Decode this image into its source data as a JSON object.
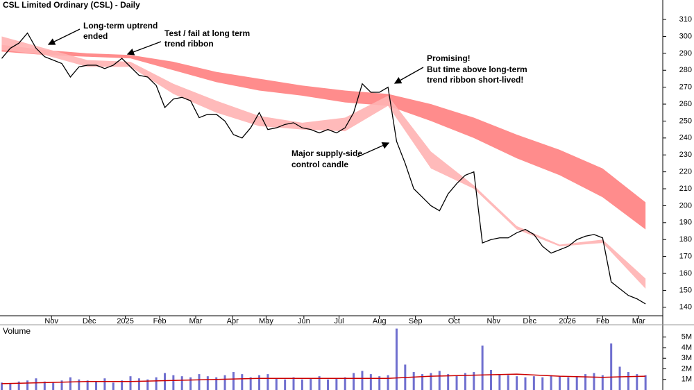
{
  "chart_data": {
    "type": "line",
    "title": "CSL Limited Ordinary (CSL) - Daily",
    "volume_title": "Volume",
    "x": [
      0,
      1,
      2,
      3,
      4,
      5,
      6,
      7,
      8,
      9,
      10,
      11,
      12,
      13,
      14,
      15,
      16,
      17,
      18,
      19,
      20,
      21,
      22,
      23,
      24,
      25,
      26,
      27,
      28,
      29,
      30,
      31,
      32,
      33,
      34,
      35,
      36,
      37,
      38,
      39,
      40,
      41,
      42,
      43,
      44,
      45,
      46,
      47,
      48,
      49,
      50,
      51,
      52,
      53,
      54,
      55,
      56,
      57,
      58,
      59,
      60,
      61,
      62,
      63,
      64,
      65,
      66,
      67,
      68,
      69,
      70,
      71,
      72,
      73,
      74,
      75
    ],
    "series": [
      {
        "name": "CSL",
        "color": "#000000",
        "values": [
          287,
          293,
          296,
          302,
          293,
          288,
          286,
          284,
          276,
          282,
          283,
          283,
          281,
          283,
          287,
          282,
          277,
          276,
          271,
          258,
          263,
          264,
          262,
          252,
          254,
          254,
          250,
          242,
          240,
          246,
          255,
          245,
          246,
          248,
          249,
          246,
          245,
          243,
          245,
          243,
          246,
          255,
          272,
          267,
          267,
          270,
          238,
          225,
          210,
          205,
          200,
          197,
          207,
          213,
          218,
          220,
          178,
          180,
          181,
          181,
          184,
          186,
          183,
          176,
          172,
          174,
          176,
          180,
          182,
          183,
          181,
          155,
          151,
          147,
          145,
          142
        ]
      }
    ],
    "ribbons": [
      {
        "color": "#ff8080",
        "x": [
          0,
          5,
          10,
          15,
          20,
          25,
          30,
          35,
          40,
          45,
          50,
          55,
          60,
          65,
          70,
          75
        ],
        "upper": [
          295,
          292,
          290,
          289,
          285,
          279,
          275,
          271,
          268,
          266,
          260,
          252,
          242,
          233,
          222,
          202
        ],
        "lower": [
          291,
          289,
          288,
          287,
          280,
          273,
          268,
          265,
          261,
          259,
          250,
          240,
          228,
          218,
          205,
          186
        ]
      },
      {
        "color": "#ffb3b3",
        "x": [
          0,
          5,
          10,
          15,
          20,
          25,
          30,
          35,
          40,
          45,
          50,
          55,
          60,
          65,
          70,
          75
        ],
        "upper": [
          300,
          293,
          286,
          285,
          272,
          262,
          253,
          249,
          252,
          265,
          232,
          212,
          188,
          177,
          180,
          157
        ],
        "lower": [
          292,
          289,
          282,
          282,
          266,
          255,
          247,
          245,
          244,
          259,
          222,
          210,
          186,
          176,
          178,
          151
        ]
      }
    ],
    "volume": {
      "color": "#6f6fcf",
      "values": [
        700000,
        600000,
        800000,
        900000,
        1100000,
        800000,
        700000,
        900000,
        1200000,
        1000000,
        900000,
        800000,
        1100000,
        700000,
        900000,
        1300000,
        1100000,
        1000000,
        1200000,
        1600000,
        1400000,
        1300000,
        1200000,
        1500000,
        1300000,
        1200000,
        1400000,
        1700000,
        1500000,
        1200000,
        1400000,
        1500000,
        1100000,
        1000000,
        1200000,
        1000000,
        1100000,
        1300000,
        1000000,
        1100000,
        1200000,
        1600000,
        1800000,
        1500000,
        1300000,
        1400000,
        5800000,
        2400000,
        1700000,
        1500000,
        1600000,
        1800000,
        1500000,
        1400000,
        1600000,
        1700000,
        4200000,
        1900000,
        1500000,
        1400000,
        1300000,
        1200000,
        1300000,
        1200000,
        1400000,
        1300000,
        1200000,
        1300000,
        1500000,
        1600000,
        1400000,
        4400000,
        2200000,
        1700000,
        1500000,
        1400000
      ],
      "avg_color": "#cc0000",
      "avg_x": [
        0,
        5,
        10,
        15,
        20,
        25,
        30,
        35,
        40,
        45,
        50,
        55,
        60,
        65,
        70,
        75
      ],
      "avg": [
        600000,
        700000,
        800000,
        800000,
        900000,
        1000000,
        1100000,
        1100000,
        1100000,
        1100000,
        1300000,
        1400000,
        1500000,
        1300000,
        1200000,
        1300000
      ]
    },
    "xlim": [
      -0.2,
      76.2
    ],
    "xticks": [
      {
        "value": 5.8,
        "label": "Nov"
      },
      {
        "value": 10.2,
        "label": "Dec"
      },
      {
        "value": 14.4,
        "label": "2025"
      },
      {
        "value": 18.4,
        "label": "Feb"
      },
      {
        "value": 22.6,
        "label": "Mar"
      },
      {
        "value": 26.9,
        "label": "Apr"
      },
      {
        "value": 30.8,
        "label": "May"
      },
      {
        "value": 35.2,
        "label": "Jun"
      },
      {
        "value": 39.3,
        "label": "Jul"
      },
      {
        "value": 44.0,
        "label": "Aug"
      },
      {
        "value": 48.2,
        "label": "Sep"
      },
      {
        "value": 52.7,
        "label": "Oct"
      },
      {
        "value": 57.3,
        "label": "Nov"
      },
      {
        "value": 61.5,
        "label": "Dec"
      },
      {
        "value": 65.9,
        "label": "2026"
      },
      {
        "value": 70.0,
        "label": "Feb"
      },
      {
        "value": 74.2,
        "label": "Mar"
      }
    ],
    "ylim": [
      135,
      321.5
    ],
    "yticks": [
      140,
      150,
      160,
      170,
      180,
      190,
      200,
      210,
      220,
      230,
      240,
      250,
      260,
      270,
      280,
      290,
      300,
      310
    ],
    "y2lim": [
      0,
      5900000
    ],
    "y2ticks": [
      {
        "value": 1000000,
        "label": "1M"
      },
      {
        "value": 2000000,
        "label": "2M"
      },
      {
        "value": 3000000,
        "label": "3M"
      },
      {
        "value": 4000000,
        "label": "4M"
      },
      {
        "value": 5000000,
        "label": "5M"
      }
    ],
    "annotations": [
      {
        "lines": [
          "Long-term uptrend",
          "ended"
        ]
      },
      {
        "lines": [
          "Test / fail at long term",
          "trend ribbon"
        ]
      },
      {
        "lines": [
          "Promising!",
          "But time above long-term",
          "trend ribbon short-lived!"
        ]
      },
      {
        "lines": [
          "Major supply-side",
          "control candle"
        ]
      }
    ]
  }
}
